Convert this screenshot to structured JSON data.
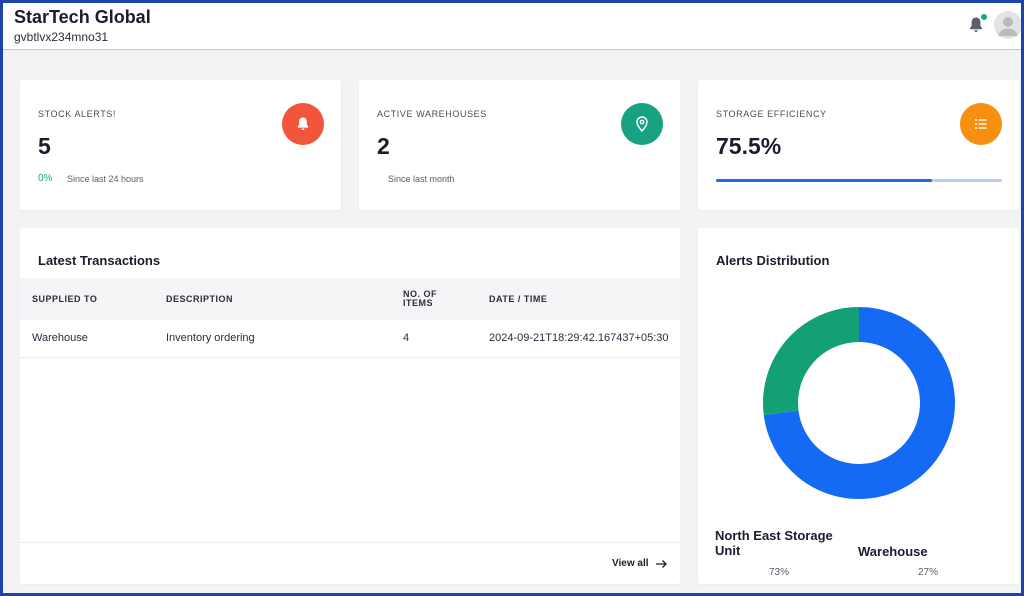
{
  "header": {
    "company_name": "StarTech Global",
    "company_id": "gvbtlvx234mno31",
    "notification_dot_color": "#12a88a"
  },
  "stats": [
    {
      "label": "STOCK ALERTS!",
      "value": "5",
      "change": "0%",
      "since": "Since last 24 hours",
      "icon": "bell-icon",
      "icon_color": "#f2553b"
    },
    {
      "label": "ACTIVE WAREHOUSES",
      "value": "2",
      "since": "Since last month",
      "icon": "location-pin-icon",
      "icon_color": "#17a383"
    },
    {
      "label": "STORAGE EFFICIENCY",
      "value": "75.5%",
      "progress": 75.5,
      "icon": "list-icon",
      "icon_color": "#f7900e"
    }
  ],
  "transactions": {
    "title": "Latest Transactions",
    "columns": [
      "SUPPLIED TO",
      "DESCRIPTION",
      "NO. OF ITEMS",
      "DATE / TIME"
    ],
    "rows": [
      {
        "supplied_to": "Warehouse",
        "description": "Inventory ordering",
        "items": "4",
        "datetime": "2024-09-21T18:29:42.167437+05:30"
      }
    ],
    "view_all": "View all"
  },
  "alerts": {
    "title": "Alerts Distribution",
    "chart_data": {
      "type": "pie",
      "donut": true,
      "categories": [
        "North East Storage Unit",
        "Warehouse"
      ],
      "values": [
        73,
        27
      ],
      "colors": [
        "#1469f5",
        "#14a075"
      ],
      "labels": [
        "73%",
        "27%"
      ]
    }
  }
}
